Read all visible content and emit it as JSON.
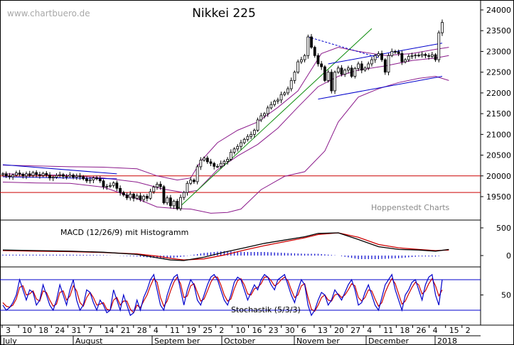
{
  "chart_data": {
    "type": "candlestick",
    "title": "Nikkei 225",
    "watermark": "www.chartbuero.de",
    "source_label": "Hoppenstedt Charts",
    "colors": {
      "candle": "#000000",
      "bollinger": "#8b1a8b",
      "trend_up": "#0a8a0a",
      "trend_channel": "#0000cc",
      "resistance": "#cc0000",
      "macd": "#000000",
      "signal": "#cc0000",
      "histogram": "#0000cc",
      "stoch_k": "#0000cc",
      "stoch_d": "#cc0000",
      "stoch_levels": "#0000cc",
      "text_gray": "#9a9a9a"
    },
    "price_axis": {
      "ylim": [
        18650,
        24200
      ],
      "ticks": [
        19500,
        20000,
        20500,
        21000,
        21500,
        22000,
        22500,
        23000,
        23500,
        24000
      ]
    },
    "horizontal_lines": [
      20000,
      19600
    ],
    "x_tick_labels": [
      "3",
      "10",
      "18",
      "24",
      "31",
      "7",
      "14",
      "21",
      "28",
      "4",
      "11",
      "19",
      "25",
      "2",
      "10",
      "16",
      "23",
      "30",
      "6",
      "13",
      "20",
      "27",
      "4",
      "11",
      "18",
      "26",
      "4",
      "15",
      "2"
    ],
    "month_labels": [
      "July",
      "August",
      "Septem ber",
      "October",
      "Novem ber",
      "December",
      "2018"
    ],
    "price_close": [
      20050,
      20000,
      19980,
      20020,
      20070,
      20040,
      20000,
      20050,
      20010,
      20080,
      20030,
      20010,
      20060,
      20020,
      19950,
      19970,
      20010,
      20030,
      19990,
      19990,
      20020,
      19970,
      20000,
      19980,
      19930,
      19880,
      19900,
      19950,
      19930,
      19880,
      19740,
      19750,
      19770,
      19830,
      19700,
      19600,
      19540,
      19470,
      19560,
      19460,
      19520,
      19430,
      19510,
      19460,
      19620,
      19730,
      19800,
      19740,
      19350,
      19470,
      19280,
      19390,
      19210,
      19480,
      19600,
      19820,
      19900,
      19860,
      20220,
      20380,
      20430,
      20340,
      20300,
      20230,
      20230,
      20300,
      20350,
      20400,
      20570,
      20650,
      20710,
      20800,
      20880,
      20950,
      21000,
      21100,
      21350,
      21450,
      21500,
      21640,
      21720,
      21800,
      21830,
      21960,
      22000,
      22100,
      22300,
      22500,
      22750,
      22800,
      22900,
      23350,
      23100,
      22900,
      22700,
      22630,
      22300,
      22500,
      22050,
      22500,
      22600,
      22450,
      22550,
      22600,
      22400,
      22590,
      22700,
      22550,
      22600,
      22700,
      22800,
      22900,
      22950,
      22800,
      22500,
      22900,
      23000,
      22990,
      22950,
      22750,
      22800,
      22880,
      22900,
      22910,
      22900,
      22930,
      22900,
      22880,
      22920,
      22800,
      23450,
      23700
    ],
    "bollinger": {
      "upper": [
        [
          0,
          20260
        ],
        [
          10,
          20240
        ],
        [
          20,
          20220
        ],
        [
          30,
          20210
        ],
        [
          40,
          20170
        ],
        [
          46,
          20000
        ],
        [
          52,
          19900
        ],
        [
          56,
          19950
        ],
        [
          59,
          20350
        ],
        [
          64,
          20800
        ],
        [
          70,
          21100
        ],
        [
          76,
          21300
        ],
        [
          82,
          21650
        ],
        [
          88,
          22050
        ],
        [
          95,
          22950
        ],
        [
          100,
          23100
        ],
        [
          106,
          23000
        ],
        [
          114,
          22900
        ],
        [
          122,
          22950
        ],
        [
          129,
          23050
        ],
        [
          133,
          23100
        ]
      ],
      "middle": [
        [
          0,
          20050
        ],
        [
          10,
          20030
        ],
        [
          20,
          20010
        ],
        [
          30,
          19950
        ],
        [
          40,
          19850
        ],
        [
          48,
          19680
        ],
        [
          54,
          19600
        ],
        [
          58,
          19650
        ],
        [
          64,
          20150
        ],
        [
          70,
          20480
        ],
        [
          76,
          20760
        ],
        [
          82,
          21150
        ],
        [
          88,
          21660
        ],
        [
          94,
          22150
        ],
        [
          100,
          22400
        ],
        [
          106,
          22550
        ],
        [
          114,
          22650
        ],
        [
          122,
          22780
        ],
        [
          129,
          22840
        ],
        [
          133,
          22900
        ]
      ],
      "lower": [
        [
          0,
          19850
        ],
        [
          10,
          19830
        ],
        [
          20,
          19820
        ],
        [
          30,
          19730
        ],
        [
          40,
          19450
        ],
        [
          46,
          19250
        ],
        [
          52,
          19210
        ],
        [
          56,
          19200
        ],
        [
          62,
          19100
        ],
        [
          67,
          19120
        ],
        [
          71,
          19200
        ],
        [
          77,
          19670
        ],
        [
          84,
          19990
        ],
        [
          90,
          20100
        ],
        [
          96,
          20600
        ],
        [
          100,
          21300
        ],
        [
          106,
          21900
        ],
        [
          112,
          22100
        ],
        [
          118,
          22250
        ],
        [
          124,
          22350
        ],
        [
          129,
          22400
        ],
        [
          133,
          22300
        ]
      ]
    },
    "trend_lines": {
      "uptrend": [
        [
          52,
          19200
        ],
        [
          110,
          23550
        ]
      ],
      "upper_channel": [
        [
          97,
          22700
        ],
        [
          131,
          23200
        ]
      ],
      "lower_channel": [
        [
          94,
          21850
        ],
        [
          131,
          22400
        ]
      ],
      "dashed_resistance": [
        [
          91,
          23350
        ],
        [
          112,
          22850
        ]
      ],
      "descending_upper": [
        [
          0,
          20270
        ],
        [
          34,
          20050
        ]
      ],
      "descending_lower": [
        [
          0,
          19980
        ],
        [
          34,
          19930
        ]
      ]
    },
    "macd": {
      "ylim": [
        -150,
        700
      ],
      "ticks": [
        0,
        500
      ],
      "macd_line": [
        [
          0,
          100
        ],
        [
          10,
          90
        ],
        [
          20,
          80
        ],
        [
          30,
          60
        ],
        [
          40,
          20
        ],
        [
          46,
          -40
        ],
        [
          50,
          -80
        ],
        [
          54,
          -90
        ],
        [
          60,
          -30
        ],
        [
          66,
          60
        ],
        [
          72,
          140
        ],
        [
          78,
          220
        ],
        [
          84,
          280
        ],
        [
          90,
          340
        ],
        [
          94,
          400
        ],
        [
          100,
          410
        ],
        [
          106,
          290
        ],
        [
          112,
          160
        ],
        [
          118,
          110
        ],
        [
          124,
          100
        ],
        [
          129,
          80
        ],
        [
          133,
          110
        ]
      ],
      "signal_line": [
        [
          0,
          90
        ],
        [
          10,
          80
        ],
        [
          20,
          70
        ],
        [
          30,
          55
        ],
        [
          40,
          30
        ],
        [
          46,
          -10
        ],
        [
          50,
          -50
        ],
        [
          54,
          -80
        ],
        [
          60,
          -60
        ],
        [
          66,
          10
        ],
        [
          72,
          100
        ],
        [
          78,
          180
        ],
        [
          84,
          250
        ],
        [
          90,
          320
        ],
        [
          94,
          380
        ],
        [
          100,
          410
        ],
        [
          106,
          330
        ],
        [
          112,
          200
        ],
        [
          118,
          140
        ],
        [
          124,
          110
        ],
        [
          129,
          90
        ],
        [
          133,
          100
        ]
      ]
    },
    "stochastic": {
      "label": "Stochastik (5/3/3)",
      "ylim": [
        0,
        100
      ],
      "ticks": [
        50
      ],
      "levels": [
        80,
        20
      ],
      "k_line": [
        30,
        20,
        25,
        35,
        50,
        80,
        60,
        40,
        60,
        55,
        30,
        40,
        70,
        50,
        30,
        20,
        40,
        70,
        50,
        30,
        60,
        80,
        40,
        20,
        30,
        60,
        55,
        35,
        20,
        40,
        30,
        15,
        20,
        60,
        40,
        20,
        50,
        30,
        10,
        15,
        40,
        20,
        45,
        60,
        80,
        90,
        60,
        30,
        20,
        50,
        70,
        85,
        90,
        60,
        30,
        60,
        80,
        70,
        40,
        30,
        50,
        70,
        85,
        90,
        80,
        60,
        40,
        30,
        50,
        75,
        85,
        80,
        60,
        40,
        55,
        70,
        60,
        80,
        90,
        85,
        70,
        60,
        80,
        85,
        90,
        70,
        50,
        35,
        60,
        80,
        70,
        30,
        10,
        20,
        40,
        55,
        50,
        30,
        40,
        60,
        50,
        40,
        55,
        70,
        80,
        60,
        30,
        35,
        55,
        70,
        50,
        30,
        20,
        45,
        70,
        80,
        90,
        60,
        40,
        20,
        50,
        60,
        75,
        80,
        60,
        40,
        70,
        85,
        90,
        50,
        30,
        80
      ],
      "d_line": [
        35,
        28,
        26,
        30,
        42,
        65,
        68,
        50,
        52,
        58,
        42,
        38,
        58,
        55,
        40,
        28,
        32,
        55,
        58,
        40,
        48,
        68,
        58,
        35,
        28,
        45,
        55,
        45,
        30,
        32,
        35,
        22,
        20,
        40,
        45,
        30,
        38,
        38,
        22,
        15,
        30,
        25,
        38,
        50,
        68,
        82,
        75,
        45,
        28,
        38,
        58,
        75,
        85,
        72,
        45,
        48,
        68,
        72,
        55,
        38,
        42,
        58,
        75,
        85,
        85,
        70,
        50,
        38,
        42,
        62,
        78,
        82,
        70,
        52,
        50,
        62,
        65,
        72,
        85,
        85,
        78,
        68,
        72,
        80,
        85,
        78,
        60,
        45,
        50,
        68,
        72,
        45,
        22,
        18,
        30,
        45,
        50,
        40,
        38,
        50,
        52,
        45,
        50,
        60,
        72,
        68,
        45,
        38,
        45,
        60,
        58,
        42,
        28,
        35,
        55,
        70,
        82,
        72,
        52,
        32,
        38,
        52,
        65,
        75,
        70,
        52,
        58,
        72,
        82,
        68,
        48,
        60
      ]
    }
  }
}
